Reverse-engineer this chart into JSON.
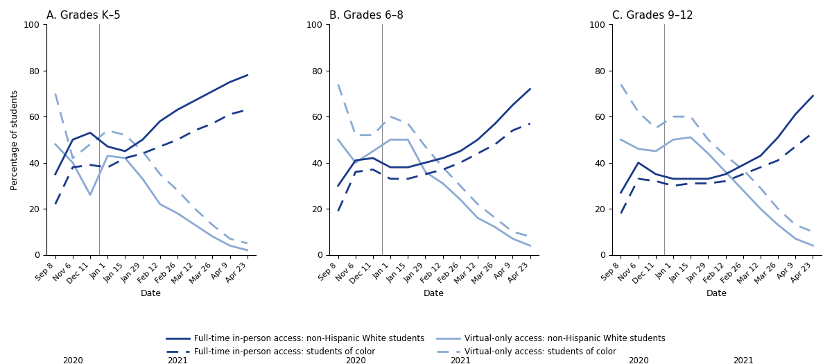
{
  "x_labels": [
    "Sep 8",
    "Nov 6",
    "Dec 11",
    "Jan 1",
    "Jan 15",
    "Jan 29",
    "Feb 12",
    "Feb 26",
    "Mar 12",
    "Mar 26",
    "Apr 9",
    "Apr 23"
  ],
  "panels": [
    {
      "title": "A. Grades K–5",
      "full_inperson_white": [
        35,
        50,
        53,
        47,
        45,
        50,
        58,
        63,
        67,
        71,
        75,
        78
      ],
      "full_inperson_color": [
        22,
        38,
        39,
        38,
        42,
        44,
        47,
        50,
        54,
        57,
        61,
        63
      ],
      "virtual_white": [
        48,
        40,
        26,
        43,
        42,
        33,
        22,
        18,
        13,
        8,
        4,
        2
      ],
      "virtual_color": [
        70,
        42,
        48,
        54,
        52,
        45,
        35,
        28,
        20,
        13,
        7,
        5
      ]
    },
    {
      "title": "B. Grades 6–8",
      "full_inperson_white": [
        30,
        41,
        42,
        38,
        38,
        40,
        42,
        45,
        50,
        57,
        65,
        72
      ],
      "full_inperson_color": [
        19,
        36,
        37,
        33,
        33,
        35,
        37,
        40,
        44,
        48,
        54,
        57
      ],
      "virtual_white": [
        50,
        40,
        45,
        50,
        50,
        36,
        31,
        24,
        16,
        12,
        7,
        4
      ],
      "virtual_color": [
        74,
        52,
        52,
        60,
        57,
        47,
        38,
        30,
        22,
        16,
        10,
        8
      ]
    },
    {
      "title": "C. Grades 9–12",
      "full_inperson_white": [
        27,
        40,
        35,
        33,
        33,
        33,
        35,
        39,
        43,
        51,
        61,
        69
      ],
      "full_inperson_color": [
        18,
        33,
        32,
        30,
        31,
        31,
        32,
        35,
        38,
        41,
        47,
        53
      ],
      "virtual_white": [
        50,
        46,
        45,
        50,
        51,
        44,
        36,
        28,
        20,
        13,
        7,
        4
      ],
      "virtual_color": [
        74,
        62,
        55,
        60,
        60,
        50,
        43,
        37,
        29,
        20,
        13,
        10
      ]
    }
  ],
  "color_dark_blue": "#1a3a8a",
  "color_light_blue": "#8aaad4",
  "ylabel": "Percentage of students",
  "xlabel": "Date",
  "ylim": [
    0,
    100
  ],
  "yticks": [
    0,
    20,
    40,
    60,
    80,
    100
  ],
  "legend_labels": [
    "Full-time in-person access: non-Hispanic White students",
    "Full-time in-person access: students of color",
    "Virtual-only access: non-Hispanic White students",
    "Virtual-only access: students of color"
  ],
  "year_sep_index": 2.5,
  "year_2020_mid": 1.0,
  "year_2021_mid": 7.0
}
